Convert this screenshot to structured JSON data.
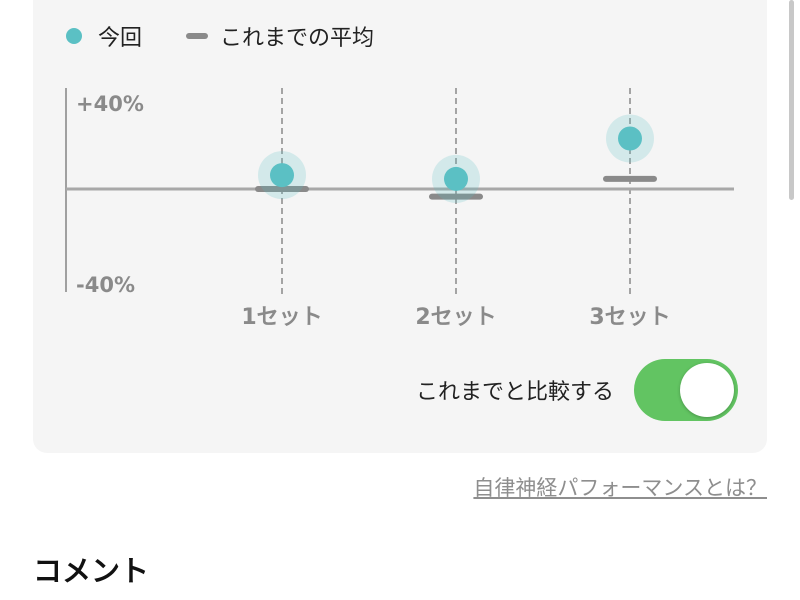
{
  "legend": {
    "current": "今回",
    "average": "これまでの平均"
  },
  "chart_data": {
    "type": "scatter",
    "categories": [
      "1セット",
      "2セット",
      "3セット"
    ],
    "y_tick_labels": [
      "+40%",
      "-40%"
    ],
    "ylim": [
      -40,
      40
    ],
    "series": [
      {
        "name": "今回",
        "values": [
          5.5,
          4,
          20
        ],
        "color": "#5bc0c4"
      },
      {
        "name": "これまでの平均",
        "values": [
          0,
          -3,
          4
        ],
        "color": "#8a8a8a"
      }
    ]
  },
  "compare": {
    "label": "これまでと比較する",
    "enabled": true,
    "color": "#62c462"
  },
  "link": "自律神経パフォーマンスとは？",
  "comment_heading": "コメント"
}
